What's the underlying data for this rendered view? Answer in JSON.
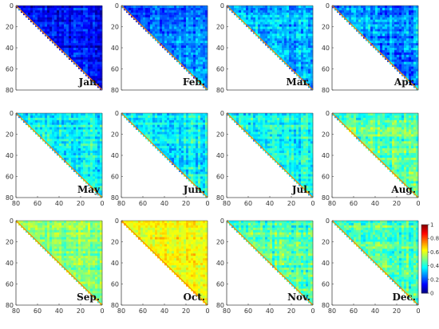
{
  "chart_data": {
    "type": "heatmap",
    "shape": "upper-triangular correlation matrix per month",
    "colormap": "jet",
    "colorbar": {
      "range": [
        0,
        1
      ],
      "ticks": [
        "0",
        "0.2",
        "0.4",
        "0.6",
        "0.8",
        "1"
      ]
    },
    "panels": [
      {
        "label": "Jan.",
        "mean": 0.12,
        "spread": 0.08,
        "n": 80,
        "yticks": [
          "0",
          "20",
          "40",
          "60",
          "80"
        ],
        "xticks": []
      },
      {
        "label": "Feb.",
        "mean": 0.24,
        "spread": 0.08,
        "n": 80,
        "yticks": [
          "0",
          "20",
          "40",
          "60",
          "80"
        ],
        "xticks": []
      },
      {
        "label": "Mar.",
        "mean": 0.33,
        "spread": 0.09,
        "n": 80,
        "yticks": [
          "0",
          "20",
          "40",
          "60",
          "80"
        ],
        "xticks": []
      },
      {
        "label": "Apr.",
        "mean": 0.26,
        "spread": 0.09,
        "n": 80,
        "yticks": [
          "0",
          "20",
          "40",
          "60",
          "80"
        ],
        "xticks": []
      },
      {
        "label": "May",
        "mean": 0.38,
        "spread": 0.08,
        "n": 80,
        "yticks": [
          "0",
          "20",
          "40",
          "60",
          "80"
        ],
        "xticks": [
          "80",
          "60",
          "40",
          "20",
          "0"
        ]
      },
      {
        "label": "Jun.",
        "mean": 0.37,
        "spread": 0.08,
        "n": 80,
        "yticks": [
          "0",
          "20",
          "40",
          "60",
          "80"
        ],
        "xticks": [
          "80",
          "60",
          "40",
          "20",
          "0"
        ]
      },
      {
        "label": "Jul.",
        "mean": 0.38,
        "spread": 0.08,
        "n": 80,
        "yticks": [
          "0",
          "20",
          "40",
          "60",
          "80"
        ],
        "xticks": [
          "80",
          "60",
          "40",
          "20",
          "0"
        ]
      },
      {
        "label": "Aug.",
        "mean": 0.45,
        "spread": 0.09,
        "n": 80,
        "yticks": [
          "0",
          "20",
          "40",
          "60",
          "80"
        ],
        "xticks": [
          "80",
          "60",
          "40",
          "20",
          "0"
        ]
      },
      {
        "label": "Sep.",
        "mean": 0.5,
        "spread": 0.07,
        "n": 80,
        "yticks": [
          "0",
          "20",
          "40",
          "60",
          "80"
        ],
        "xticks": [
          "80",
          "60",
          "40",
          "20",
          "0"
        ]
      },
      {
        "label": "Oct.",
        "mean": 0.63,
        "spread": 0.06,
        "n": 80,
        "yticks": [
          "0",
          "20",
          "40",
          "60",
          "80"
        ],
        "xticks": [
          "80",
          "60",
          "40",
          "20",
          "0"
        ]
      },
      {
        "label": "Nov.",
        "mean": 0.45,
        "spread": 0.09,
        "n": 80,
        "yticks": [
          "0",
          "20",
          "40",
          "60",
          "80"
        ],
        "xticks": [
          "80",
          "60",
          "40",
          "20",
          "0"
        ]
      },
      {
        "label": "Dec.",
        "mean": 0.45,
        "spread": 0.09,
        "n": 80,
        "yticks": [
          "0",
          "20",
          "40",
          "60",
          "80"
        ],
        "xticks": [
          "80",
          "60",
          "40",
          "20",
          "0"
        ]
      }
    ]
  }
}
